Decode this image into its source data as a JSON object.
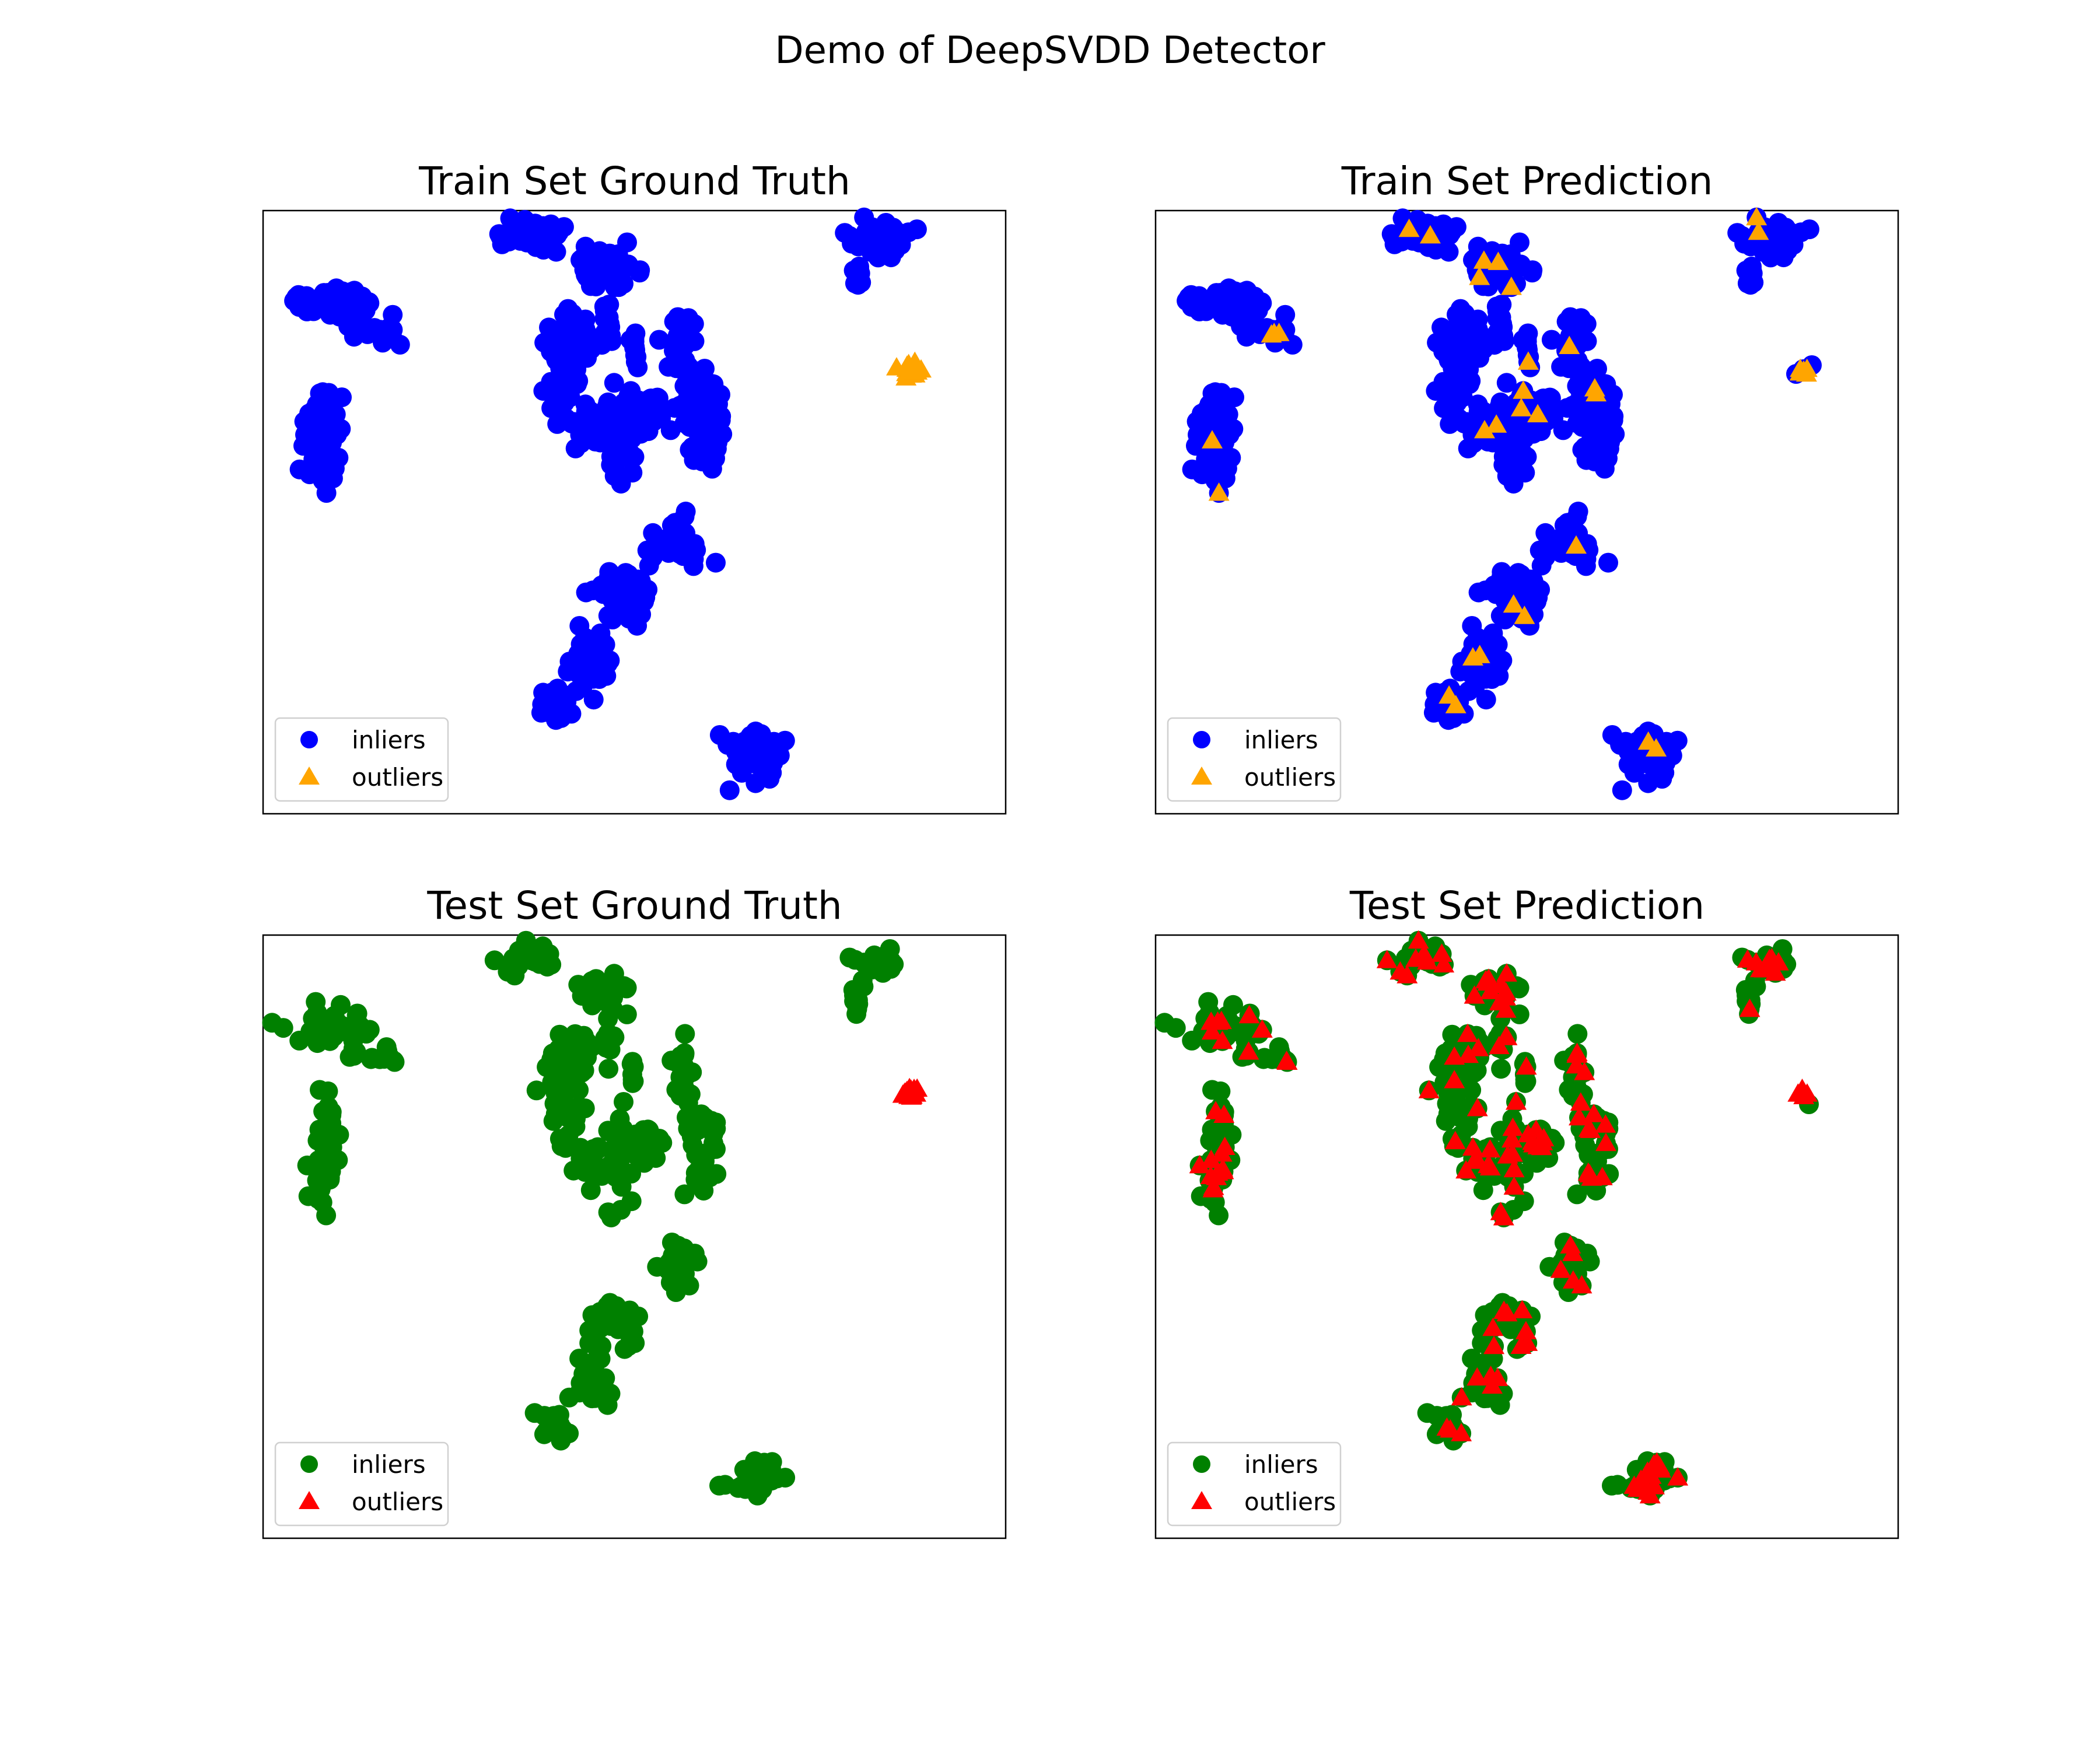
{
  "figure": {
    "title": "Demo of DeepSVDD Detector"
  },
  "chart_data": [
    {
      "type": "scatter",
      "title": "Train Set Ground Truth",
      "axes_visible": false,
      "legend_position": "lower left",
      "series": [
        {
          "name": "inliers",
          "marker": "circle",
          "color": "#0000ff"
        },
        {
          "name": "outliers",
          "marker": "triangle",
          "color": "#ffa500"
        }
      ]
    },
    {
      "type": "scatter",
      "title": "Train Set Prediction",
      "axes_visible": false,
      "legend_position": "lower left",
      "series": [
        {
          "name": "inliers",
          "marker": "circle",
          "color": "#0000ff"
        },
        {
          "name": "outliers",
          "marker": "triangle",
          "color": "#ffa500"
        }
      ]
    },
    {
      "type": "scatter",
      "title": "Test Set Ground Truth",
      "axes_visible": false,
      "legend_position": "lower left",
      "series": [
        {
          "name": "inliers",
          "marker": "circle",
          "color": "#008000"
        },
        {
          "name": "outliers",
          "marker": "triangle",
          "color": "#ff0000"
        }
      ]
    },
    {
      "type": "scatter",
      "title": "Test Set Prediction",
      "axes_visible": false,
      "legend_position": "lower left",
      "series": [
        {
          "name": "inliers",
          "marker": "circle",
          "color": "#008000"
        },
        {
          "name": "outliers",
          "marker": "triangle",
          "color": "#ff0000"
        }
      ]
    }
  ]
}
